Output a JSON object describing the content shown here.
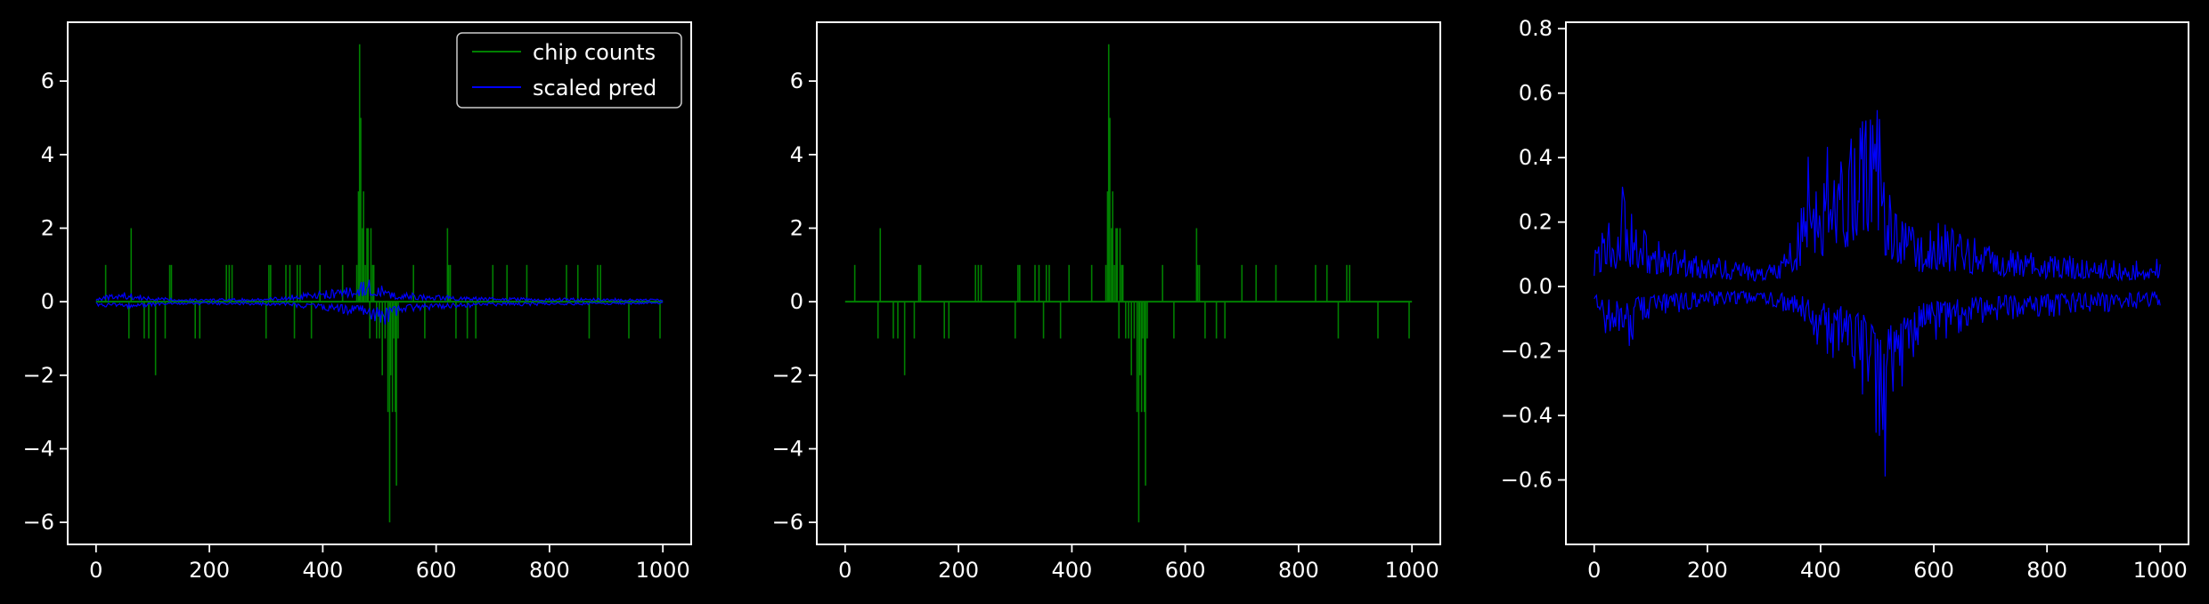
{
  "chart_data": [
    {
      "type": "line",
      "xlim": [
        -50,
        1050
      ],
      "ylim": [
        -6.6,
        7.6
      ],
      "xticks": [
        {
          "value": 0,
          "label": "0"
        },
        {
          "value": 200,
          "label": "200"
        },
        {
          "value": 400,
          "label": "400"
        },
        {
          "value": 600,
          "label": "600"
        },
        {
          "value": 800,
          "label": "800"
        },
        {
          "value": 1000,
          "label": "1000"
        }
      ],
      "yticks": [
        {
          "value": -6,
          "label": "−6"
        },
        {
          "value": -4,
          "label": "−4"
        },
        {
          "value": -2,
          "label": "−2"
        },
        {
          "value": 0,
          "label": "0"
        },
        {
          "value": 2,
          "label": "2"
        },
        {
          "value": 4,
          "label": "4"
        },
        {
          "value": 6,
          "label": "6"
        }
      ],
      "legend": {
        "position": "upper right",
        "entries": [
          "chip counts",
          "scaled pred"
        ]
      },
      "series": [
        {
          "name": "chip counts",
          "color": "#008000",
          "style": "spikes",
          "x": [
            17,
            58,
            62,
            85,
            93,
            105,
            122,
            130,
            133,
            175,
            183,
            230,
            235,
            240,
            300,
            305,
            308,
            335,
            342,
            350,
            355,
            360,
            380,
            395,
            435,
            460,
            463,
            465,
            467,
            470,
            472,
            475,
            478,
            480,
            483,
            485,
            488,
            490,
            495,
            500,
            505,
            510,
            515,
            518,
            520,
            523,
            525,
            528,
            530,
            533,
            560,
            580,
            620,
            622,
            625,
            635,
            655,
            670,
            700,
            725,
            760,
            830,
            850,
            870,
            885,
            890,
            940,
            995
          ],
          "values": [
            1,
            -1,
            2,
            -1,
            -1,
            -2,
            -1,
            1,
            1,
            -1,
            -1,
            1,
            1,
            1,
            -1,
            1,
            1,
            1,
            1,
            -1,
            1,
            1,
            -1,
            1,
            1,
            1,
            3,
            7,
            5,
            2,
            3,
            1,
            2,
            2,
            -1,
            2,
            1,
            1,
            -1,
            -1,
            -2,
            -1,
            -3,
            -6,
            -2,
            -3,
            -1,
            -3,
            -5,
            -1,
            1,
            -1,
            2,
            1,
            1,
            -1,
            -1,
            -1,
            1,
            1,
            1,
            1,
            1,
            -1,
            1,
            1,
            -1,
            -1
          ]
        },
        {
          "name": "scaled pred",
          "color": "#0000ff",
          "style": "band",
          "x": [
            0,
            50,
            100,
            200,
            300,
            350,
            400,
            450,
            470,
            480,
            500,
            510,
            520,
            550,
            600,
            700,
            800,
            900,
            1000
          ],
          "upper": [
            0.12,
            0.28,
            0.12,
            0.08,
            0.1,
            0.2,
            0.3,
            0.45,
            0.6,
            0.65,
            0.55,
            0.35,
            0.3,
            0.25,
            0.18,
            0.12,
            0.1,
            0.1,
            0.08
          ],
          "lower": [
            -0.12,
            -0.2,
            -0.12,
            -0.08,
            -0.1,
            -0.15,
            -0.25,
            -0.35,
            -0.4,
            -0.5,
            -0.6,
            -0.65,
            -0.55,
            -0.3,
            -0.2,
            -0.12,
            -0.1,
            -0.08,
            -0.06
          ]
        }
      ]
    },
    {
      "type": "line",
      "xlim": [
        -50,
        1050
      ],
      "ylim": [
        -6.6,
        7.6
      ],
      "xticks": [
        {
          "value": 0,
          "label": "0"
        },
        {
          "value": 200,
          "label": "200"
        },
        {
          "value": 400,
          "label": "400"
        },
        {
          "value": 600,
          "label": "600"
        },
        {
          "value": 800,
          "label": "800"
        },
        {
          "value": 1000,
          "label": "1000"
        }
      ],
      "yticks": [
        {
          "value": -6,
          "label": "−6"
        },
        {
          "value": -4,
          "label": "−4"
        },
        {
          "value": -2,
          "label": "−2"
        },
        {
          "value": 0,
          "label": "0"
        },
        {
          "value": 2,
          "label": "2"
        },
        {
          "value": 4,
          "label": "4"
        },
        {
          "value": 6,
          "label": "6"
        }
      ],
      "series": [
        {
          "color": "#008000",
          "style": "spikes",
          "x": [
            17,
            58,
            62,
            85,
            93,
            105,
            122,
            130,
            133,
            175,
            183,
            230,
            235,
            240,
            300,
            305,
            308,
            335,
            342,
            350,
            355,
            360,
            380,
            395,
            435,
            460,
            463,
            465,
            467,
            470,
            472,
            475,
            478,
            480,
            483,
            485,
            488,
            490,
            495,
            500,
            505,
            510,
            515,
            518,
            520,
            523,
            525,
            528,
            530,
            533,
            560,
            580,
            620,
            622,
            625,
            635,
            655,
            670,
            700,
            725,
            760,
            830,
            850,
            870,
            885,
            890,
            940,
            995
          ],
          "values": [
            1,
            -1,
            2,
            -1,
            -1,
            -2,
            -1,
            1,
            1,
            -1,
            -1,
            1,
            1,
            1,
            -1,
            1,
            1,
            1,
            1,
            -1,
            1,
            1,
            -1,
            1,
            1,
            1,
            3,
            7,
            5,
            2,
            3,
            1,
            2,
            2,
            -1,
            2,
            1,
            1,
            -1,
            -1,
            -2,
            -1,
            -3,
            -6,
            -2,
            -3,
            -1,
            -3,
            -5,
            -1,
            1,
            -1,
            2,
            1,
            1,
            -1,
            -1,
            -1,
            1,
            1,
            1,
            1,
            1,
            -1,
            1,
            1,
            -1,
            -1
          ]
        }
      ]
    },
    {
      "type": "line",
      "xlim": [
        -50,
        1050
      ],
      "ylim": [
        -0.8,
        0.82
      ],
      "xticks": [
        {
          "value": 0,
          "label": "0"
        },
        {
          "value": 200,
          "label": "200"
        },
        {
          "value": 400,
          "label": "400"
        },
        {
          "value": 600,
          "label": "600"
        },
        {
          "value": 800,
          "label": "800"
        },
        {
          "value": 1000,
          "label": "1000"
        }
      ],
      "yticks": [
        {
          "value": -0.6,
          "label": "−0.6"
        },
        {
          "value": -0.4,
          "label": "−0.4"
        },
        {
          "value": -0.2,
          "label": "−0.2"
        },
        {
          "value": 0,
          "label": "0.0"
        },
        {
          "value": 0.2,
          "label": "0.2"
        },
        {
          "value": 0.4,
          "label": "0.4"
        },
        {
          "value": 0.6,
          "label": "0.6"
        },
        {
          "value": 0.8,
          "label": "0.8"
        }
      ],
      "series": [
        {
          "color": "#0000ff",
          "style": "band",
          "x": [
            0,
            10,
            25,
            40,
            50,
            60,
            80,
            100,
            150,
            200,
            250,
            300,
            330,
            360,
            380,
            400,
            420,
            440,
            460,
            470,
            480,
            490,
            500,
            510,
            520,
            530,
            550,
            580,
            600,
            650,
            700,
            750,
            800,
            850,
            900,
            950,
            1000
          ],
          "upper": [
            0.12,
            0.16,
            0.26,
            0.2,
            0.4,
            0.25,
            0.2,
            0.15,
            0.12,
            0.1,
            0.08,
            0.06,
            0.1,
            0.2,
            0.48,
            0.35,
            0.5,
            0.45,
            0.55,
            0.74,
            0.6,
            0.74,
            0.7,
            0.4,
            0.3,
            0.25,
            0.2,
            0.18,
            0.22,
            0.16,
            0.14,
            0.12,
            0.1,
            0.1,
            0.09,
            0.08,
            0.09
          ],
          "lower": [
            -0.1,
            -0.12,
            -0.16,
            -0.18,
            -0.15,
            -0.22,
            -0.12,
            -0.1,
            -0.08,
            -0.06,
            -0.06,
            -0.06,
            -0.08,
            -0.1,
            -0.15,
            -0.2,
            -0.22,
            -0.25,
            -0.3,
            -0.33,
            -0.35,
            -0.4,
            -0.55,
            -0.73,
            -0.5,
            -0.45,
            -0.3,
            -0.2,
            -0.18,
            -0.14,
            -0.12,
            -0.1,
            -0.1,
            -0.08,
            -0.08,
            -0.07,
            -0.06
          ]
        }
      ]
    }
  ]
}
